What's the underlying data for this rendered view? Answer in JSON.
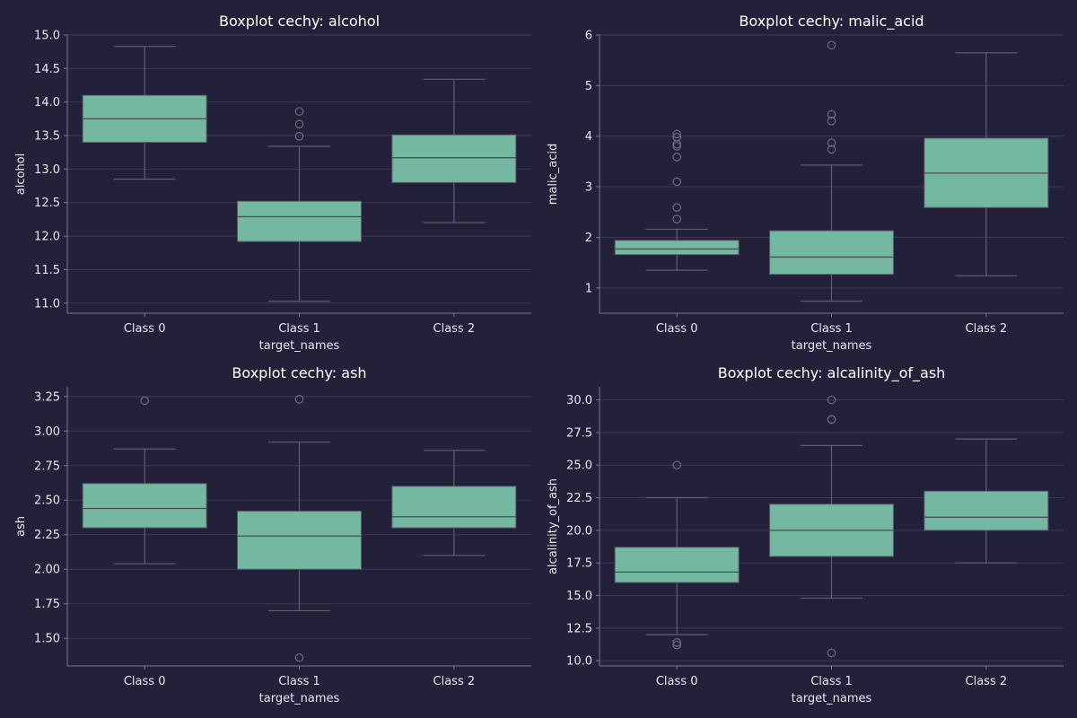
{
  "colors": {
    "background": "#23213a",
    "box_fill": "#75b8a2",
    "line": "#5f5f6a",
    "grid": "#3b3955",
    "text": "#e8e8f0"
  },
  "chart_data": [
    {
      "type": "boxplot",
      "title": "Boxplot cechy: alcohol",
      "xlabel": "target_names",
      "ylabel": "alcohol",
      "grid": true,
      "ylim": [
        10.85,
        15.0
      ],
      "yticks": [
        11.0,
        11.5,
        12.0,
        12.5,
        13.0,
        13.5,
        14.0,
        14.5,
        15.0
      ],
      "ytick_labels": [
        "11.0",
        "11.5",
        "12.0",
        "12.5",
        "13.0",
        "13.5",
        "14.0",
        "14.5",
        "15.0"
      ],
      "categories": [
        "Class 0",
        "Class 1",
        "Class 2"
      ],
      "boxes": [
        {
          "whislo": 12.85,
          "q1": 13.4,
          "med": 13.75,
          "q3": 14.1,
          "whishi": 14.83,
          "fliers": []
        },
        {
          "whislo": 11.03,
          "q1": 11.92,
          "med": 12.29,
          "q3": 12.52,
          "whishi": 13.34,
          "fliers": [
            13.49,
            13.67,
            13.86
          ]
        },
        {
          "whislo": 12.2,
          "q1": 12.8,
          "med": 13.17,
          "q3": 13.51,
          "whishi": 14.34,
          "fliers": []
        }
      ]
    },
    {
      "type": "boxplot",
      "title": "Boxplot cechy: malic_acid",
      "xlabel": "target_names",
      "ylabel": "malic_acid",
      "grid": true,
      "ylim": [
        0.5,
        6.0
      ],
      "yticks": [
        1,
        2,
        3,
        4,
        5,
        6
      ],
      "ytick_labels": [
        "1",
        "2",
        "3",
        "4",
        "5",
        "6"
      ],
      "categories": [
        "Class 0",
        "Class 1",
        "Class 2"
      ],
      "boxes": [
        {
          "whislo": 1.35,
          "q1": 1.66,
          "med": 1.77,
          "q3": 1.94,
          "whishi": 2.16,
          "fliers": [
            2.36,
            2.59,
            3.1,
            3.59,
            3.8,
            3.84,
            3.98,
            4.04
          ]
        },
        {
          "whislo": 0.74,
          "q1": 1.27,
          "med": 1.61,
          "q3": 2.13,
          "whishi": 3.43,
          "fliers": [
            3.74,
            3.87,
            4.3,
            4.43,
            5.8
          ]
        },
        {
          "whislo": 1.24,
          "q1": 2.59,
          "med": 3.27,
          "q3": 3.96,
          "whishi": 5.65,
          "fliers": []
        }
      ]
    },
    {
      "type": "boxplot",
      "title": "Boxplot cechy: ash",
      "xlabel": "target_names",
      "ylabel": "ash",
      "grid": true,
      "ylim": [
        1.3,
        3.32
      ],
      "yticks": [
        1.5,
        1.75,
        2.0,
        2.25,
        2.5,
        2.75,
        3.0,
        3.25
      ],
      "ytick_labels": [
        "1.50",
        "1.75",
        "2.00",
        "2.25",
        "2.50",
        "2.75",
        "3.00",
        "3.25"
      ],
      "categories": [
        "Class 0",
        "Class 1",
        "Class 2"
      ],
      "boxes": [
        {
          "whislo": 2.04,
          "q1": 2.3,
          "med": 2.44,
          "q3": 2.62,
          "whishi": 2.87,
          "fliers": [
            3.22
          ]
        },
        {
          "whislo": 1.7,
          "q1": 2.0,
          "med": 2.24,
          "q3": 2.42,
          "whishi": 2.92,
          "fliers": [
            1.36,
            3.23
          ]
        },
        {
          "whislo": 2.1,
          "q1": 2.3,
          "med": 2.38,
          "q3": 2.6,
          "whishi": 2.86,
          "fliers": []
        }
      ]
    },
    {
      "type": "boxplot",
      "title": "Boxplot cechy: alcalinity_of_ash",
      "xlabel": "target_names",
      "ylabel": "alcalinity_of_ash",
      "grid": true,
      "ylim": [
        9.6,
        31.0
      ],
      "yticks": [
        10.0,
        12.5,
        15.0,
        17.5,
        20.0,
        22.5,
        25.0,
        27.5,
        30.0
      ],
      "ytick_labels": [
        "10.0",
        "12.5",
        "15.0",
        "17.5",
        "20.0",
        "22.5",
        "25.0",
        "27.5",
        "30.0"
      ],
      "categories": [
        "Class 0",
        "Class 1",
        "Class 2"
      ],
      "boxes": [
        {
          "whislo": 12.0,
          "q1": 16.0,
          "med": 16.8,
          "q3": 18.7,
          "whishi": 22.5,
          "fliers": [
            11.2,
            11.4,
            25.0
          ]
        },
        {
          "whislo": 14.8,
          "q1": 18.0,
          "med": 20.0,
          "q3": 22.0,
          "whishi": 26.5,
          "fliers": [
            10.6,
            28.5,
            28.5,
            30.0
          ]
        },
        {
          "whislo": 17.5,
          "q1": 20.0,
          "med": 21.0,
          "q3": 23.0,
          "whishi": 27.0,
          "fliers": []
        }
      ]
    }
  ]
}
